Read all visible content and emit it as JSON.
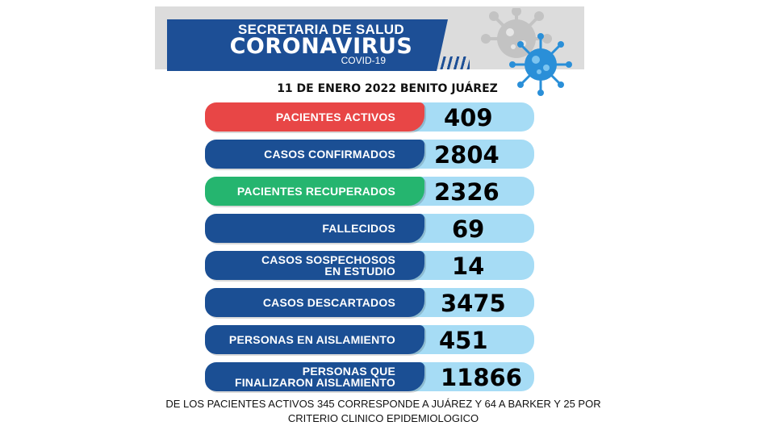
{
  "header": {
    "line1": "SECRETARIA DE SALUD",
    "line2": "CORONAVIRUS",
    "line3": "COVID-19"
  },
  "date_line": "11 DE ENERO 2022 BENITO JUÁREZ",
  "stats": [
    {
      "label": "PACIENTES ACTIVOS",
      "value": "409",
      "color": "#e84646"
    },
    {
      "label": "CASOS CONFIRMADOS",
      "value": "2804",
      "color": "#1b4f94"
    },
    {
      "label": "PACIENTES RECUPERADOS",
      "value": "2326",
      "color": "#25b56f"
    },
    {
      "label": "FALLECIDOS",
      "value": "69",
      "color": "#1b4f94"
    },
    {
      "label_line1": "CASOS SOSPECHOSOS",
      "label_line2": "EN ESTUDIO",
      "value": "14",
      "color": "#1b4f94"
    },
    {
      "label": "CASOS DESCARTADOS",
      "value": "3475",
      "color": "#1b4f94"
    },
    {
      "label": "PERSONAS EN AISLAMIENTO",
      "value": "451",
      "color": "#1b4f94"
    },
    {
      "label_line1": "PERSONAS QUE",
      "label_line2": "FINALIZARON AISLAMIENTO",
      "value": "11866",
      "color": "#1b4f94"
    }
  ],
  "footer": {
    "line1": "DE LOS PACIENTES ACTIVOS  345  CORRESPONDE A JUÁREZ Y  64  A BARKER Y 25 POR",
    "line2": "CRITERIO CLINICO EPIDEMIOLOGICO"
  },
  "icons": [
    "virus-icon"
  ],
  "colors": {
    "value_bg": "#a6dcf5",
    "header_blue": "#1d4f96",
    "virus_blue": "#2a8fd8"
  }
}
